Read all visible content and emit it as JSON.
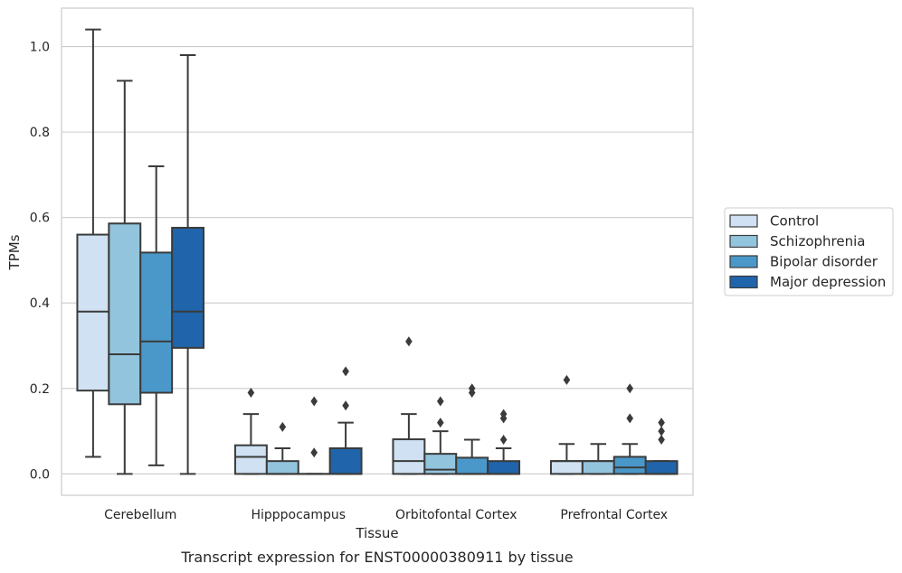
{
  "chart_data": {
    "type": "box",
    "title": "",
    "caption": "Transcript expression for ENST00000380911 by tissue",
    "xlabel": "Tissue",
    "ylabel": "TPMs",
    "ylim": [
      -0.05,
      1.09
    ],
    "yticks": [
      0.0,
      0.2,
      0.4,
      0.6,
      0.8,
      1.0
    ],
    "ytick_labels": [
      "0.0",
      "0.2",
      "0.4",
      "0.6",
      "0.8",
      "1.0"
    ],
    "grid": "horizontal",
    "legend_position": "right",
    "categories": [
      "Cerebellum",
      "Hipppocampus",
      "Orbitofontal Cortex",
      "Prefrontal Cortex"
    ],
    "series": [
      {
        "name": "Control",
        "color": "#cfe1f2",
        "boxes": [
          {
            "whisker_low": 0.04,
            "q1": 0.195,
            "median": 0.38,
            "q3": 0.56,
            "whisker_high": 1.04,
            "outliers": []
          },
          {
            "whisker_low": 0.0,
            "q1": 0.0,
            "median": 0.04,
            "q3": 0.067,
            "whisker_high": 0.14,
            "outliers": [
              0.19
            ]
          },
          {
            "whisker_low": 0.0,
            "q1": 0.0,
            "median": 0.03,
            "q3": 0.081,
            "whisker_high": 0.14,
            "outliers": [
              0.31
            ]
          },
          {
            "whisker_low": 0.0,
            "q1": 0.0,
            "median": 0.03,
            "q3": 0.03,
            "whisker_high": 0.07,
            "outliers": [
              0.22
            ]
          }
        ]
      },
      {
        "name": "Schizophrenia",
        "color": "#93c4de",
        "boxes": [
          {
            "whisker_low": 0.0,
            "q1": 0.163,
            "median": 0.28,
            "q3": 0.586,
            "whisker_high": 0.92,
            "outliers": []
          },
          {
            "whisker_low": 0.0,
            "q1": 0.0,
            "median": 0.0,
            "q3": 0.03,
            "whisker_high": 0.06,
            "outliers": [
              0.11
            ]
          },
          {
            "whisker_low": 0.0,
            "q1": 0.0,
            "median": 0.01,
            "q3": 0.047,
            "whisker_high": 0.1,
            "outliers": [
              0.12,
              0.17
            ]
          },
          {
            "whisker_low": 0.0,
            "q1": 0.0,
            "median": 0.03,
            "q3": 0.03,
            "whisker_high": 0.07,
            "outliers": []
          }
        ]
      },
      {
        "name": "Bipolar disorder",
        "color": "#4a98c9",
        "boxes": [
          {
            "whisker_low": 0.02,
            "q1": 0.19,
            "median": 0.31,
            "q3": 0.518,
            "whisker_high": 0.72,
            "outliers": []
          },
          {
            "whisker_low": 0.0,
            "q1": 0.0,
            "median": 0.0,
            "q3": 0.0,
            "whisker_high": 0.0,
            "outliers": [
              0.05,
              0.17
            ]
          },
          {
            "whisker_low": 0.0,
            "q1": 0.0,
            "median": 0.0,
            "q3": 0.038,
            "whisker_high": 0.08,
            "outliers": [
              0.19,
              0.2
            ]
          },
          {
            "whisker_low": 0.0,
            "q1": 0.0,
            "median": 0.015,
            "q3": 0.04,
            "whisker_high": 0.07,
            "outliers": [
              0.13,
              0.2
            ]
          }
        ]
      },
      {
        "name": "Major depression",
        "color": "#2064ab",
        "boxes": [
          {
            "whisker_low": 0.0,
            "q1": 0.295,
            "median": 0.38,
            "q3": 0.576,
            "whisker_high": 0.98,
            "outliers": []
          },
          {
            "whisker_low": 0.0,
            "q1": 0.0,
            "median": 0.0,
            "q3": 0.06,
            "whisker_high": 0.12,
            "outliers": [
              0.16,
              0.24
            ]
          },
          {
            "whisker_low": 0.0,
            "q1": 0.0,
            "median": 0.0,
            "q3": 0.03,
            "whisker_high": 0.06,
            "outliers": [
              0.08,
              0.13,
              0.14
            ]
          },
          {
            "whisker_low": 0.0,
            "q1": 0.0,
            "median": 0.0,
            "q3": 0.03,
            "whisker_high": 0.03,
            "outliers": [
              0.08,
              0.1,
              0.12
            ]
          }
        ]
      }
    ]
  }
}
